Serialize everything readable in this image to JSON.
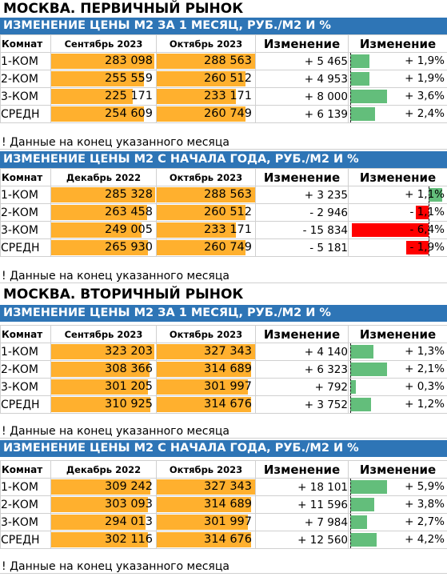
{
  "markets": [
    {
      "title": "МОСКВА. ПЕРВИЧНЫЙ РЫНОК",
      "blocks": [
        {
          "header": "ИЗМЕНЕНИЕ ЦЕНЫ М2 ЗА 1 МЕСЯЦ, РУБ./М2 И %",
          "col_room": "Комнат",
          "col_p1": "Сентябрь 2023",
          "col_p2": "Октябрь 2023",
          "col_abs": "Изменение",
          "col_pct": "Изменение",
          "rows": [
            {
              "room": "1-КОМ",
              "p1": "283 098",
              "p1_num": 283098,
              "p2": "288 563",
              "p2_num": 288563,
              "abs": "+ 5 465",
              "pct": "+ 1,9%",
              "pct_num": 1.9
            },
            {
              "room": "2-КОМ",
              "p1": "255 559",
              "p1_num": 255559,
              "p2": "260 512",
              "p2_num": 260512,
              "abs": "+ 4 953",
              "pct": "+ 1,9%",
              "pct_num": 1.9
            },
            {
              "room": "3-КОМ",
              "p1": "225 171",
              "p1_num": 225171,
              "p2": "233 171",
              "p2_num": 233171,
              "abs": "+ 8 000",
              "pct": "+ 3,6%",
              "pct_num": 3.6
            },
            {
              "room": "СРЕДН",
              "p1": "254 609",
              "p1_num": 254609,
              "p2": "260 749",
              "p2_num": 260749,
              "abs": "+ 6 139",
              "pct": "+ 2,4%",
              "pct_num": 2.4
            }
          ],
          "footnote": "! Данные на конец указанного месяца"
        },
        {
          "header": "ИЗМЕНЕНИЕ ЦЕНЫ М2 С НАЧАЛА ГОДА, РУБ./М2 И %",
          "col_room": "Комнат",
          "col_p1": "Декабрь 2022",
          "col_p2": "Октябрь 2023",
          "col_abs": "Изменение",
          "col_pct": "Изменение",
          "rows": [
            {
              "room": "1-КОМ",
              "p1": "285 328",
              "p1_num": 285328,
              "p2": "288 563",
              "p2_num": 288563,
              "abs": "+ 3 235",
              "pct": "+ 1,1%",
              "pct_num": 1.1
            },
            {
              "room": "2-КОМ",
              "p1": "263 458",
              "p1_num": 263458,
              "p2": "260 512",
              "p2_num": 260512,
              "abs": "- 2 946",
              "pct": "- 1,1%",
              "pct_num": -1.1
            },
            {
              "room": "3-КОМ",
              "p1": "249 005",
              "p1_num": 249005,
              "p2": "233 171",
              "p2_num": 233171,
              "abs": "- 15 834",
              "pct": "- 6,4%",
              "pct_num": -6.4
            },
            {
              "room": "СРЕДН",
              "p1": "265 930",
              "p1_num": 265930,
              "p2": "260 749",
              "p2_num": 260749,
              "abs": "- 5 181",
              "pct": "- 1,9%",
              "pct_num": -1.9
            }
          ],
          "footnote": "! Данные на конец указанного месяца"
        }
      ]
    },
    {
      "title": "МОСКВА. ВТОРИЧНЫЙ РЫНОК",
      "blocks": [
        {
          "header": "ИЗМЕНЕНИЕ ЦЕНЫ М2 ЗА 1 МЕСЯЦ, РУБ./М2 И %",
          "col_room": "Комнат",
          "col_p1": "Сентябрь 2023",
          "col_p2": "Октябрь 2023",
          "col_abs": "Изменение",
          "col_pct": "Изменение",
          "rows": [
            {
              "room": "1-КОМ",
              "p1": "323 203",
              "p1_num": 323203,
              "p2": "327 343",
              "p2_num": 327343,
              "abs": "+ 4 140",
              "pct": "+ 1,3%",
              "pct_num": 1.3
            },
            {
              "room": "2-КОМ",
              "p1": "308 366",
              "p1_num": 308366,
              "p2": "314 689",
              "p2_num": 314689,
              "abs": "+ 6 323",
              "pct": "+ 2,1%",
              "pct_num": 2.1
            },
            {
              "room": "3-КОМ",
              "p1": "301 205",
              "p1_num": 301205,
              "p2": "301 997",
              "p2_num": 301997,
              "abs": "+ 792",
              "pct": "+ 0,3%",
              "pct_num": 0.3
            },
            {
              "room": "СРЕДН",
              "p1": "310 925",
              "p1_num": 310925,
              "p2": "314 676",
              "p2_num": 314676,
              "abs": "+ 3 752",
              "pct": "+ 1,2%",
              "pct_num": 1.2
            }
          ],
          "footnote": "! Данные на конец указанного месяца"
        },
        {
          "header": "ИЗМЕНЕНИЕ ЦЕНЫ М2 С НАЧАЛА ГОДА, РУБ./М2 И %",
          "col_room": "Комнат",
          "col_p1": "Декабрь 2022",
          "col_p2": "Октябрь 2023",
          "col_abs": "Изменение",
          "col_pct": "Изменение",
          "rows": [
            {
              "room": "1-КОМ",
              "p1": "309 242",
              "p1_num": 309242,
              "p2": "327 343",
              "p2_num": 327343,
              "abs": "+ 18 101",
              "pct": "+ 5,9%",
              "pct_num": 5.9
            },
            {
              "room": "2-КОМ",
              "p1": "303 093",
              "p1_num": 303093,
              "p2": "314 689",
              "p2_num": 314689,
              "abs": "+ 11 596",
              "pct": "+ 3,8%",
              "pct_num": 3.8
            },
            {
              "room": "3-КОМ",
              "p1": "294 013",
              "p1_num": 294013,
              "p2": "301 997",
              "p2_num": 301997,
              "abs": "+ 7 984",
              "pct": "+ 2,7%",
              "pct_num": 2.7
            },
            {
              "room": "СРЕДН",
              "p1": "302 116",
              "p1_num": 302116,
              "p2": "314 676",
              "p2_num": 314676,
              "abs": "+ 12 560",
              "pct": "+ 4,2%",
              "pct_num": 4.2
            }
          ],
          "footnote": "! Данные на конец указанного месяца"
        }
      ]
    }
  ],
  "colors": {
    "header_bg": "#2e75b6",
    "price_bar": "#ffb02e",
    "positive_bar": "#63be7b",
    "negative_bar": "#ff0000"
  }
}
